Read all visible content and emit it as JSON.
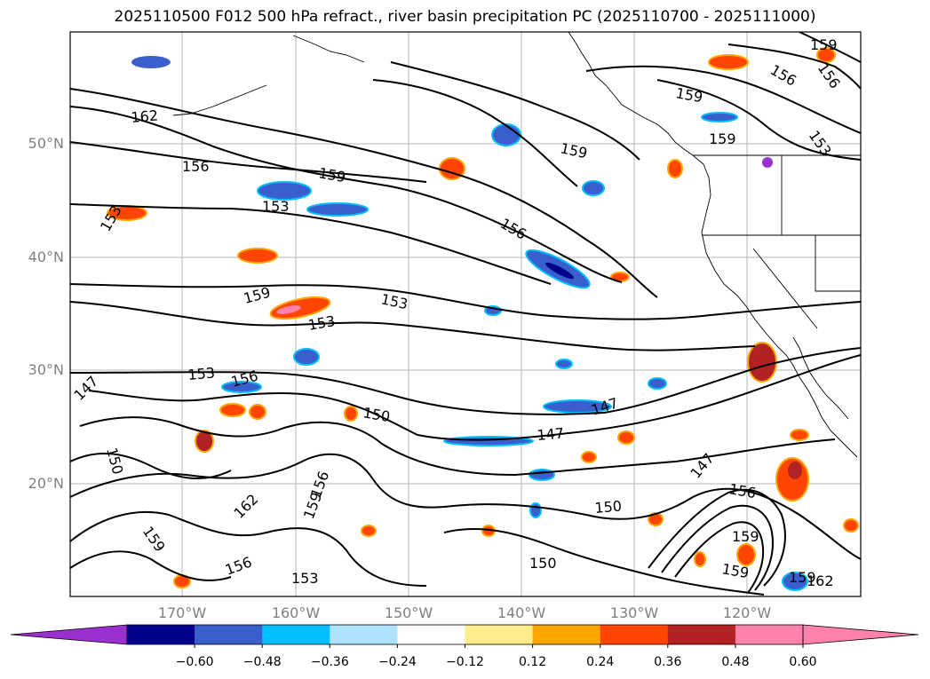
{
  "title": "2025110500 F012 500 hPa refract., river basin precipitation PC (2025110700 - 2025111000)",
  "lat_labels": [
    "50°N",
    "40°N",
    "30°N",
    "20°N"
  ],
  "lon_labels": [
    "170°W",
    "160°W",
    "150°W",
    "140°W",
    "130°W",
    "120°W"
  ],
  "contour_labels": [
    "159",
    "156",
    "156",
    "159",
    "162",
    "159",
    "159",
    "153",
    "156",
    "159",
    "153",
    "156",
    "153",
    "159",
    "153",
    "153",
    "156",
    "153",
    "147",
    "150",
    "150",
    "147",
    "147",
    "156",
    "159",
    "162",
    "159",
    "156",
    "153",
    "150",
    "150",
    "147",
    "156",
    "159",
    "159",
    "159",
    "162"
  ],
  "colorbar": {
    "ticks": [
      "−0.60",
      "−0.48",
      "−0.36",
      "−0.24",
      "−0.12",
      "0.12",
      "0.24",
      "0.36",
      "0.48",
      "0.60"
    ],
    "colors": [
      "#9b30d0",
      "#00008b",
      "#3a5fcd",
      "#00bfff",
      "#b0e2ff",
      "#ffffff",
      "#ffec8b",
      "#ffa500",
      "#ff4500",
      "#b22222",
      "#ff82ab",
      "#ff82ab"
    ]
  }
}
